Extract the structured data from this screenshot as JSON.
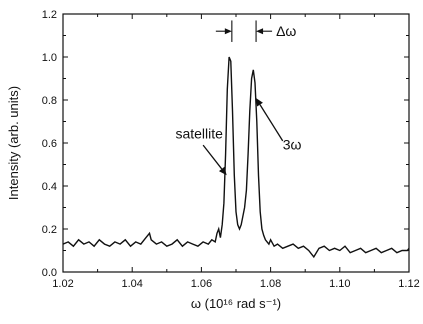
{
  "chart_data": {
    "type": "line",
    "title": "",
    "xlabel": "ω (10¹⁶ rad s⁻¹)",
    "ylabel": "Intensity (arb. units)",
    "xlim": [
      1.02,
      1.12
    ],
    "ylim": [
      0.0,
      1.2
    ],
    "x_ticks": [
      "1.02",
      "1.04",
      "1.06",
      "1.08",
      "1.10",
      "1.12"
    ],
    "y_ticks": [
      "0.0",
      "0.2",
      "0.4",
      "0.6",
      "0.8",
      "1.0",
      "1.2"
    ],
    "grid": false,
    "legend": "none",
    "line_color": "#111111",
    "series": [
      {
        "x": [
          1.02,
          1.0215,
          1.023,
          1.0245,
          1.026,
          1.0275,
          1.029,
          1.0305,
          1.032,
          1.0335,
          1.035,
          1.0365,
          1.038,
          1.0395,
          1.041,
          1.0425,
          1.044,
          1.045,
          1.0455,
          1.047,
          1.0485,
          1.05,
          1.0515,
          1.053,
          1.0545,
          1.056,
          1.0575,
          1.059,
          1.0605,
          1.062,
          1.063,
          1.064,
          1.0645,
          1.065,
          1.0655,
          1.066,
          1.0665,
          1.067,
          1.0675,
          1.068,
          1.0685,
          1.069,
          1.0695,
          1.07,
          1.0705,
          1.071,
          1.0715,
          1.072,
          1.0725,
          1.073,
          1.0735,
          1.074,
          1.0745,
          1.075,
          1.0755,
          1.076,
          1.0765,
          1.077,
          1.0775,
          1.078,
          1.0785,
          1.079,
          1.0795,
          1.08,
          1.081,
          1.082,
          1.0835,
          1.085,
          1.0865,
          1.088,
          1.0895,
          1.091,
          1.0925,
          1.094,
          1.0955,
          1.097,
          1.0985,
          1.1,
          1.1015,
          1.103,
          1.1045,
          1.106,
          1.1075,
          1.109,
          1.1105,
          1.112,
          1.1135,
          1.115,
          1.1165,
          1.118,
          1.1195,
          1.12
        ],
        "y": [
          0.13,
          0.14,
          0.12,
          0.15,
          0.13,
          0.14,
          0.12,
          0.15,
          0.13,
          0.12,
          0.14,
          0.13,
          0.15,
          0.12,
          0.14,
          0.13,
          0.16,
          0.18,
          0.15,
          0.13,
          0.14,
          0.12,
          0.13,
          0.15,
          0.12,
          0.14,
          0.13,
          0.12,
          0.14,
          0.13,
          0.15,
          0.14,
          0.18,
          0.2,
          0.16,
          0.22,
          0.32,
          0.55,
          0.85,
          1.0,
          0.98,
          0.75,
          0.45,
          0.28,
          0.22,
          0.2,
          0.22,
          0.26,
          0.3,
          0.38,
          0.55,
          0.75,
          0.9,
          0.94,
          0.88,
          0.7,
          0.45,
          0.28,
          0.2,
          0.17,
          0.15,
          0.14,
          0.13,
          0.15,
          0.12,
          0.13,
          0.11,
          0.12,
          0.13,
          0.11,
          0.12,
          0.1,
          0.07,
          0.11,
          0.12,
          0.1,
          0.11,
          0.1,
          0.12,
          0.09,
          0.1,
          0.11,
          0.09,
          0.1,
          0.11,
          0.09,
          0.1,
          0.11,
          0.09,
          0.1,
          0.1,
          0.11
        ]
      }
    ],
    "annotations": [
      {
        "text": "satellite"
      },
      {
        "text": "3ω"
      },
      {
        "text": "Δω"
      }
    ]
  }
}
